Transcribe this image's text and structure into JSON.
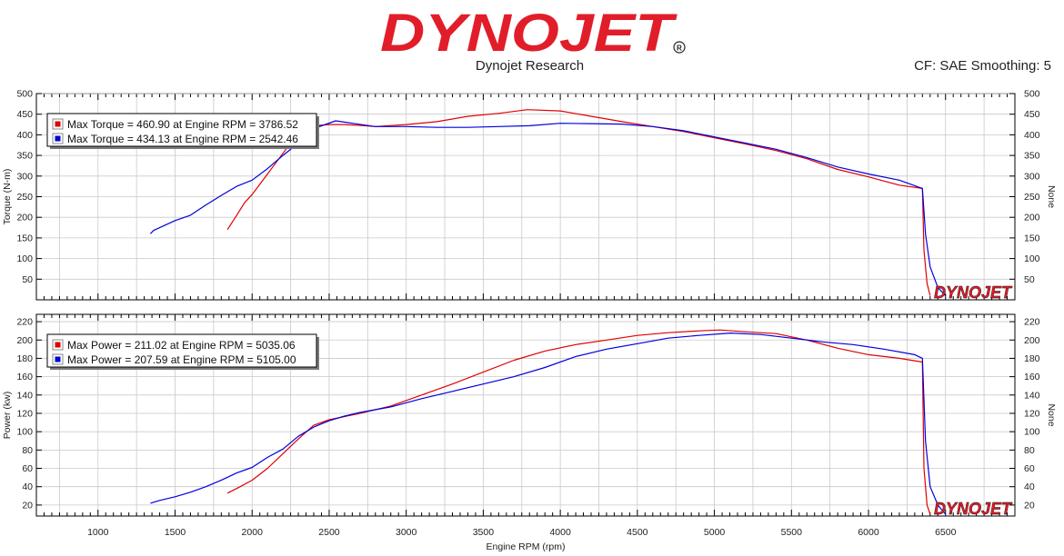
{
  "header": {
    "brand": "DYNOJET",
    "subtitle": "Dynojet Research",
    "info": "CF: SAE Smoothing: 5"
  },
  "colors": {
    "run1": "#e00000",
    "run2": "#0000dd",
    "brand": "#e21d2a"
  },
  "chart_data": [
    {
      "type": "line",
      "ylabel": "Torque (N-m)",
      "y2label": "None",
      "xlim": [
        600,
        6950
      ],
      "ylim": [
        0,
        500
      ],
      "yticks": [
        "50",
        "100",
        "150",
        "200",
        "250",
        "300",
        "350",
        "400",
        "450",
        "500"
      ],
      "legend": [
        "Max Torque = 460.90 at Engine RPM = 3786.52",
        "Max Torque = 434.13 at Engine RPM = 2542.46"
      ],
      "legend_position": "top-left",
      "grid": true,
      "series": [
        {
          "name": "Max Torque = 460.90 at Engine RPM = 3786.52",
          "color": "#e00000",
          "x": [
            1840,
            1900,
            1950,
            2000,
            2050,
            2100,
            2150,
            2200,
            2250,
            2300,
            2350,
            2400,
            2500,
            2600,
            2700,
            2800,
            3000,
            3200,
            3400,
            3600,
            3786,
            4000,
            4200,
            4400,
            4600,
            4800,
            5000,
            5200,
            5400,
            5600,
            5800,
            6000,
            6200,
            6350,
            6360,
            6380,
            6400
          ],
          "y": [
            170,
            205,
            235,
            255,
            280,
            305,
            330,
            355,
            380,
            400,
            415,
            422,
            425,
            425,
            423,
            420,
            425,
            432,
            445,
            452,
            461,
            458,
            445,
            432,
            420,
            408,
            393,
            378,
            362,
            342,
            316,
            298,
            278,
            270,
            120,
            40,
            10
          ]
        },
        {
          "name": "Max Torque = 434.13 at Engine RPM = 2542.46",
          "color": "#0000dd",
          "x": [
            1340,
            1360,
            1400,
            1500,
            1600,
            1700,
            1800,
            1900,
            2000,
            2100,
            2200,
            2300,
            2400,
            2542,
            2650,
            2800,
            3000,
            3200,
            3400,
            3600,
            3800,
            4000,
            4200,
            4400,
            4600,
            4800,
            5000,
            5200,
            5400,
            5600,
            5800,
            6000,
            6200,
            6350,
            6370,
            6400,
            6450,
            6500
          ],
          "y": [
            160,
            168,
            175,
            192,
            205,
            230,
            253,
            275,
            290,
            318,
            350,
            380,
            415,
            434,
            428,
            420,
            420,
            418,
            418,
            420,
            422,
            428,
            427,
            426,
            420,
            410,
            395,
            380,
            365,
            345,
            322,
            305,
            290,
            270,
            160,
            80,
            30,
            10
          ]
        }
      ]
    },
    {
      "type": "line",
      "xlabel": "Engine RPM (rpm)",
      "ylabel": "Power (kw)",
      "y2label": "None",
      "xlim": [
        600,
        6950
      ],
      "ylim": [
        8,
        228
      ],
      "xticks": [
        "1000",
        "1500",
        "2000",
        "2500",
        "3000",
        "3500",
        "4000",
        "4500",
        "5000",
        "5500",
        "6000",
        "6500"
      ],
      "yticks": [
        "20",
        "40",
        "60",
        "80",
        "100",
        "120",
        "140",
        "160",
        "180",
        "200",
        "220"
      ],
      "legend": [
        "Max Power = 211.02 at Engine RPM = 5035.06",
        "Max Power = 207.59 at Engine RPM = 5105.00"
      ],
      "legend_position": "top-left",
      "grid": true,
      "series": [
        {
          "name": "Max Power = 211.02 at Engine RPM = 5035.06",
          "color": "#e00000",
          "x": [
            1840,
            1900,
            2000,
            2100,
            2200,
            2300,
            2400,
            2500,
            2700,
            2900,
            3100,
            3300,
            3500,
            3700,
            3900,
            4100,
            4300,
            4500,
            4700,
            4900,
            5035,
            5200,
            5400,
            5600,
            5800,
            6000,
            6200,
            6350,
            6360,
            6380,
            6400
          ],
          "y": [
            33,
            38,
            47,
            60,
            76,
            92,
            107,
            113,
            120,
            128,
            140,
            152,
            165,
            178,
            188,
            195,
            200,
            205,
            208,
            210,
            211,
            209,
            207,
            200,
            191,
            184,
            180,
            176,
            60,
            20,
            10
          ]
        },
        {
          "name": "Max Power = 207.59 at Engine RPM = 5105.00",
          "color": "#0000dd",
          "x": [
            1340,
            1400,
            1500,
            1600,
            1700,
            1800,
            1900,
            2000,
            2100,
            2200,
            2300,
            2400,
            2500,
            2600,
            2700,
            2900,
            3100,
            3300,
            3500,
            3700,
            3900,
            4100,
            4300,
            4500,
            4700,
            4900,
            5105,
            5300,
            5500,
            5700,
            5900,
            6100,
            6300,
            6350,
            6370,
            6400,
            6450,
            6500
          ],
          "y": [
            22,
            25,
            29,
            34,
            40,
            47,
            55,
            61,
            72,
            81,
            95,
            105,
            112,
            117,
            121,
            127,
            136,
            144,
            152,
            160,
            170,
            182,
            190,
            196,
            202,
            205,
            207.6,
            206,
            202,
            198,
            195,
            190,
            184,
            180,
            90,
            40,
            20,
            10
          ]
        }
      ]
    }
  ]
}
